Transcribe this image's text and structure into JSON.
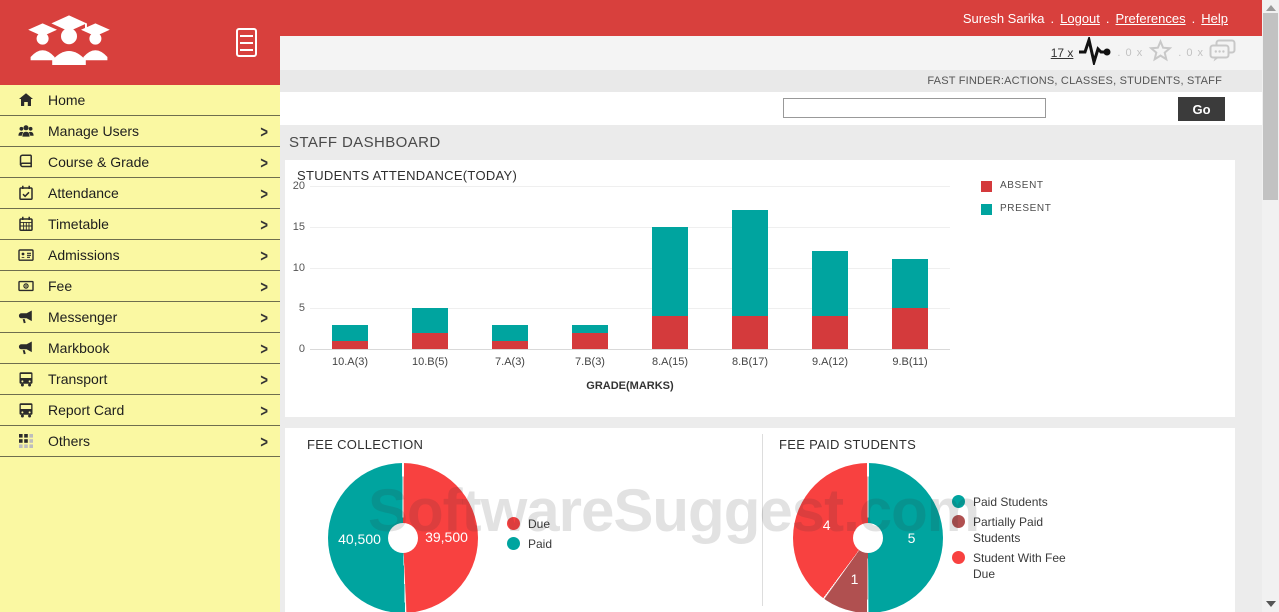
{
  "header": {
    "user": "Suresh Sarika",
    "separator": ".",
    "links": [
      {
        "label": "Logout"
      },
      {
        "label": "Preferences"
      },
      {
        "label": "Help"
      }
    ]
  },
  "toolbar": {
    "pulse_label": "17 x",
    "star_label": ". 0 x",
    "chat_label": ". 0 x"
  },
  "fast_finder": "FAST FINDER:ACTIONS, CLASSES, STUDENTS, STAFF",
  "search": {
    "value": "",
    "go_label": "Go"
  },
  "page_title": "STAFF DASHBOARD",
  "watermark": "SoftwareSuggest.com",
  "sidebar": {
    "items": [
      {
        "label": "Home",
        "icon": "home-icon",
        "chevron": false
      },
      {
        "label": "Manage Users",
        "icon": "users-icon",
        "chevron": true
      },
      {
        "label": "Course & Grade",
        "icon": "book-icon",
        "chevron": true
      },
      {
        "label": "Attendance",
        "icon": "calendar-check-icon",
        "chevron": true
      },
      {
        "label": "Timetable",
        "icon": "calendar-icon",
        "chevron": true
      },
      {
        "label": "Admissions",
        "icon": "id-card-icon",
        "chevron": true
      },
      {
        "label": "Fee",
        "icon": "money-icon",
        "chevron": true
      },
      {
        "label": "Messenger",
        "icon": "megaphone-icon",
        "chevron": true
      },
      {
        "label": "Markbook",
        "icon": "megaphone-icon",
        "chevron": true
      },
      {
        "label": "Transport",
        "icon": "bus-icon",
        "chevron": true
      },
      {
        "label": "Report Card",
        "icon": "bus-icon",
        "chevron": true
      },
      {
        "label": "Others",
        "icon": "grid-icon",
        "chevron": true
      }
    ]
  },
  "colors": {
    "brand_red": "#d8403d",
    "sidebar_yellow": "#faf8a2",
    "teal": "#00a49f",
    "bar_red": "#d43a3c",
    "donut_red": "#f84140",
    "dark_red": "#b05050",
    "go_button": "#3b3b3b"
  },
  "chart_data": [
    {
      "type": "bar",
      "stacked": true,
      "title": "STUDENTS ATTENDANCE(TODAY)",
      "categories": [
        "10.A(3)",
        "10.B(5)",
        "7.A(3)",
        "7.B(3)",
        "8.A(15)",
        "8.B(17)",
        "9.A(12)",
        "9.B(11)"
      ],
      "series": [
        {
          "name": "ABSENT",
          "color": "#d43a3c",
          "values": [
            1,
            2,
            1,
            2,
            4,
            4,
            4,
            5
          ]
        },
        {
          "name": "PRESENT",
          "color": "#00a49f",
          "values": [
            2,
            3,
            2,
            1,
            11,
            13,
            8,
            6
          ]
        }
      ],
      "xlabel": "GRADE(MARKS)",
      "ylabel": "",
      "ylim": [
        0,
        20
      ],
      "yticks": [
        0,
        5,
        10,
        15,
        20
      ],
      "grid": true,
      "legend_position": "right"
    },
    {
      "type": "pie",
      "title": "FEE COLLECTION",
      "donut_hole_ratio": 0.2,
      "slices": [
        {
          "label": "Due",
          "value": 39500,
          "display": "39,500",
          "color": "#f84140"
        },
        {
          "label": "Paid",
          "value": 40500,
          "display": "40,500",
          "color": "#00a49f"
        }
      ],
      "legend_position": "right"
    },
    {
      "type": "pie",
      "title": "FEE PAID STUDENTS",
      "donut_hole_ratio": 0.2,
      "slices": [
        {
          "label": "Paid Students",
          "value": 5,
          "display": "5",
          "color": "#00a49f"
        },
        {
          "label": "Partially Paid Students",
          "value": 1,
          "display": "1",
          "color": "#b05050"
        },
        {
          "label": "Student With Fee Due",
          "value": 4,
          "display": "4",
          "color": "#f84140"
        }
      ],
      "legend_position": "right"
    }
  ]
}
